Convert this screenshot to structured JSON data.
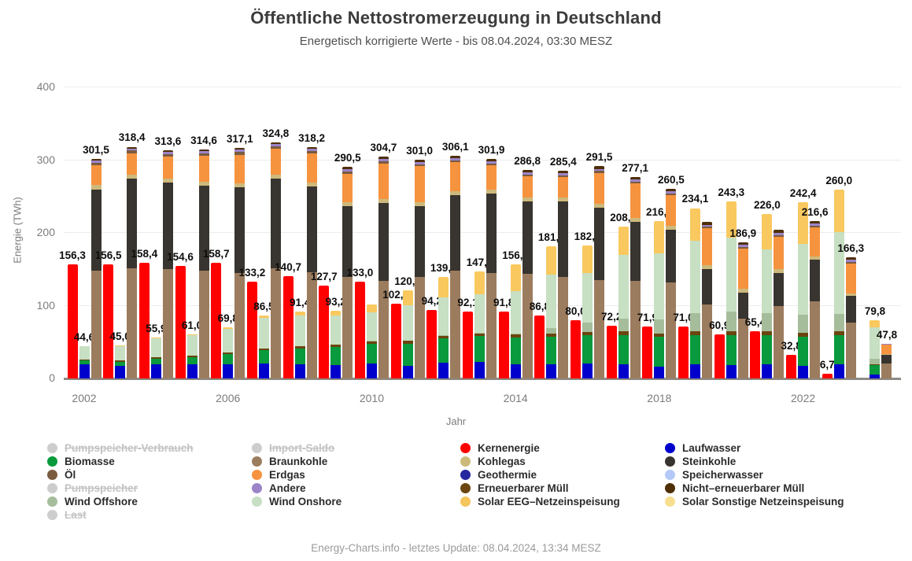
{
  "title": "Öffentliche Nettostromerzeugung in Deutschland",
  "subtitle": "Energetisch korrigierte Werte - bis 08.04.2024, 03:30 MESZ",
  "footer": "Energy-Charts.info - letztes Update: 08.04.2024, 13:34 MESZ",
  "y_axis": {
    "title": "Energie (TWh)",
    "ticks": [
      0,
      100,
      200,
      300,
      400
    ],
    "max": 400
  },
  "x_axis": {
    "title": "Jahr",
    "tick_years": [
      2002,
      2006,
      2010,
      2014,
      2018,
      2022
    ]
  },
  "colors": {
    "kernenergie": "#fe0000",
    "laufwasser": "#0000cc",
    "biomasse": "#089a3c",
    "ern_muell": "#6b450f",
    "wind_offshore": "#a6bd9b",
    "wind_onshore": "#c7dfc2",
    "solar": "#f9c95f",
    "braunkohle": "#9c7c5e",
    "steinkohle": "#38342f",
    "kohlegas": "#cdb97b",
    "erdgas": "#f6933f",
    "oel": "#7a5c3f",
    "andere": "#9c84c8",
    "nicht_ern_muell": "#4f2f05",
    "geothermie": "#26269e",
    "speicherwasser": "#b5c9f8",
    "solar_eeg": "#f3c55c",
    "solar_sonstige": "#f8de8f",
    "disabled_legend": "#cdcdcd",
    "gridline": "#ececec",
    "axis_line": "#8d8b85"
  },
  "chart_data": {
    "type": "bar",
    "stacked": true,
    "unit": "TWh",
    "ylim": [
      0,
      400
    ],
    "grid": true,
    "legend_position": "bottom",
    "years": [
      2002,
      2003,
      2004,
      2005,
      2006,
      2007,
      2008,
      2009,
      2010,
      2011,
      2012,
      2013,
      2014,
      2015,
      2016,
      2017,
      2018,
      2019,
      2020,
      2021,
      2022,
      2023,
      2024
    ],
    "kernenergie": {
      "values": [
        156.3,
        156.5,
        158.4,
        154.6,
        158.7,
        133.2,
        140.7,
        127.7,
        133.0,
        102.2,
        94.2,
        92.1,
        91.8,
        86.8,
        80.0,
        72.2,
        71.9,
        71.0,
        60.9,
        65.4,
        32.8,
        6.7,
        0
      ],
      "labels": [
        "156,3",
        "156,5",
        "158,4",
        "154,6",
        "158,7",
        "133,2",
        "140,7",
        "127,7",
        "133,0",
        "102,2",
        "94,2",
        "92,1",
        "91,8",
        "86,8",
        "80,0",
        "72,2",
        "71,9",
        "71,0",
        "60,9",
        "65,4",
        "32,8",
        "6,7",
        null
      ]
    },
    "renewables_stack": {
      "totals": [
        44.6,
        45.0,
        55.9,
        61.0,
        69.8,
        86.5,
        91.4,
        93.2,
        102.0,
        120.8,
        139.2,
        147.2,
        156.5,
        181.9,
        182.7,
        208.8,
        216.0,
        234.1,
        243.3,
        226.0,
        242.4,
        260.0,
        79.8
      ],
      "labels": [
        "44,6",
        "45,0",
        "55,9",
        "61,0",
        "69,8",
        "86,5",
        "91,4",
        "93,2",
        null,
        "120,8",
        "139,2",
        "147,2",
        "156,5",
        "181,9",
        "182,7",
        "208,8",
        "216,0",
        "234,1",
        "243,3",
        "226,0",
        "242,4",
        "260,0",
        "79,8"
      ],
      "segment_order": [
        "laufwasser",
        "biomasse",
        "ern_muell",
        "wind_offshore",
        "wind_onshore",
        "solar"
      ],
      "segments": {
        "laufwasser": [
          20.0,
          17.0,
          19.5,
          19.0,
          19.5,
          20.5,
          20.0,
          18.5,
          20.5,
          17.5,
          21.5,
          22.5,
          19.5,
          19.0,
          20.5,
          20.0,
          16.5,
          19.5,
          18.5,
          19.0,
          17.0,
          19.5,
          5.5
        ],
        "biomasse": [
          4.5,
          6.0,
          7.5,
          10.5,
          13.5,
          18.0,
          21.5,
          24.5,
          27.5,
          30.5,
          33.5,
          35.5,
          37.0,
          38.0,
          39.0,
          40.0,
          40.5,
          40.5,
          41.0,
          40.5,
          40.0,
          40.0,
          13.0
        ],
        "ern_muell": [
          1.6,
          1.8,
          2.0,
          2.3,
          2.5,
          2.7,
          2.9,
          3.0,
          3.2,
          3.4,
          3.6,
          3.8,
          4.0,
          4.2,
          4.4,
          4.6,
          4.8,
          5.0,
          5.2,
          5.4,
          5.6,
          5.8,
          1.5
        ],
        "wind_offshore": [
          0,
          0,
          0,
          0,
          0,
          0,
          0,
          0,
          0.2,
          0.6,
          0.7,
          0.9,
          1.4,
          8.3,
          12.4,
          17.7,
          19.3,
          24.7,
          27.3,
          24.4,
          24.8,
          23.5,
          7.5
        ],
        "wind_onshore": [
          18.4,
          20.0,
          26.3,
          28.0,
          32.1,
          42.0,
          42.5,
          40.6,
          39.0,
          49.0,
          52.0,
          53.5,
          58.5,
          73.5,
          68.6,
          87.5,
          90.5,
          99.0,
          102.0,
          87.6,
          97.0,
          112.0,
          43.0
        ],
        "solar": [
          0.1,
          0.2,
          0.6,
          1.2,
          2.2,
          3.3,
          4.5,
          6.6,
          11.6,
          19.8,
          27.9,
          31.0,
          36.1,
          38.9,
          37.8,
          39.0,
          44.4,
          45.4,
          49.3,
          49.1,
          58.0,
          59.2,
          9.3
        ]
      }
    },
    "conventional_stack": {
      "totals": [
        301.5,
        318.4,
        313.6,
        314.6,
        317.1,
        324.8,
        318.2,
        290.5,
        304.7,
        301.0,
        306.1,
        301.9,
        286.8,
        285.4,
        291.5,
        277.1,
        260.5,
        214.9,
        186.9,
        204.0,
        216.6,
        166.3,
        47.8
      ],
      "labels": [
        "301,5",
        "318,4",
        "313,6",
        "314,6",
        "317,1",
        "324,8",
        "318,2",
        "290,5",
        "304,7",
        "301,0",
        "306,1",
        "301,9",
        "286,8",
        "285,4",
        "291,5",
        "277,1",
        "260,5",
        null,
        "186,9",
        null,
        "216,6",
        "166,3",
        "47,8"
      ],
      "segment_order": [
        "braunkohle",
        "steinkohle",
        "kohlegas",
        "erdgas",
        "oel",
        "andere",
        "nicht_ern_muell"
      ],
      "segments": {
        "braunkohle": [
          148,
          151,
          150,
          148,
          145,
          151,
          146,
          140,
          134,
          139,
          148,
          145,
          144,
          139,
          135,
          134,
          131.5,
          102,
          82,
          99,
          106,
          77,
          21
        ],
        "steinkohle": [
          112,
          124,
          119,
          117,
          118,
          124,
          118,
          97,
          107,
          98,
          104,
          109,
          99,
          104,
          100,
          81,
          72.5,
          48,
          36,
          46,
          57,
          36,
          11
        ],
        "kohlegas": [
          5.5,
          5.5,
          5.5,
          5.5,
          5.5,
          5.5,
          5.5,
          5.0,
          5.5,
          5.5,
          5.5,
          5.5,
          5.5,
          5.5,
          5.5,
          5.5,
          5.5,
          5.5,
          5.0,
          5.0,
          4.5,
          4.0,
          1.0
        ],
        "erdgas": [
          27,
          29,
          30.5,
          35,
          39,
          35,
          39.5,
          39.5,
          49,
          49.5,
          39.5,
          33.5,
          29.5,
          28,
          42,
          47.5,
          42.5,
          51,
          55,
          45,
          40,
          41,
          13
        ],
        "oel": [
          4.0,
          4.0,
          3.5,
          3.5,
          3.5,
          3.0,
          3.0,
          2.8,
          2.7,
          2.5,
          2.5,
          2.5,
          2.4,
          2.5,
          2.5,
          2.4,
          2.4,
          2.3,
          2.2,
          2.3,
          2.4,
          2.0,
          0.5
        ],
        "andere": [
          2.5,
          2.4,
          2.6,
          3.0,
          3.3,
          3.4,
          3.2,
          3.2,
          3.3,
          3.2,
          3.2,
          3.0,
          3.0,
          3.0,
          3.0,
          3.1,
          2.6,
          2.6,
          3.1,
          3.1,
          3.1,
          2.8,
          0.6
        ],
        "nicht_ern_muell": [
          2.5,
          2.5,
          2.5,
          2.6,
          2.8,
          2.9,
          3.0,
          3.0,
          3.2,
          3.3,
          3.4,
          3.4,
          3.4,
          3.4,
          3.5,
          3.6,
          3.5,
          3.5,
          3.6,
          3.6,
          3.6,
          3.5,
          0.7
        ]
      }
    }
  },
  "legend": {
    "columns": [
      [
        {
          "label": "Pumpspeicher-Verbrauch",
          "color_key": "disabled_legend",
          "disabled": true
        },
        {
          "label": "Biomasse",
          "color_key": "biomasse",
          "disabled": false
        },
        {
          "label": "Öl",
          "color_key": "oel",
          "disabled": false
        },
        {
          "label": "Pumpspeicher",
          "color_key": "disabled_legend",
          "disabled": true
        },
        {
          "label": "Wind Offshore",
          "color_key": "wind_offshore",
          "disabled": false
        },
        {
          "label": "Last",
          "color_key": "disabled_legend",
          "disabled": true
        }
      ],
      [
        {
          "label": "Import-Saldo",
          "color_key": "disabled_legend",
          "disabled": true
        },
        {
          "label": "Braunkohle",
          "color_key": "braunkohle",
          "disabled": false
        },
        {
          "label": "Erdgas",
          "color_key": "erdgas",
          "disabled": false
        },
        {
          "label": "Andere",
          "color_key": "andere",
          "disabled": false
        },
        {
          "label": "Wind Onshore",
          "color_key": "wind_onshore",
          "disabled": false
        }
      ],
      [
        {
          "label": "Kernenergie",
          "color_key": "kernenergie",
          "disabled": false
        },
        {
          "label": "Kohlegas",
          "color_key": "kohlegas",
          "disabled": false
        },
        {
          "label": "Geothermie",
          "color_key": "geothermie",
          "disabled": false
        },
        {
          "label": "Erneuerbarer Müll",
          "color_key": "ern_muell",
          "disabled": false
        },
        {
          "label": "Solar EEG–Netzeinspeisung",
          "color_key": "solar_eeg",
          "disabled": false
        }
      ],
      [
        {
          "label": "Laufwasser",
          "color_key": "laufwasser",
          "disabled": false
        },
        {
          "label": "Steinkohle",
          "color_key": "steinkohle",
          "disabled": false
        },
        {
          "label": "Speicherwasser",
          "color_key": "speicherwasser",
          "disabled": false
        },
        {
          "label": "Nicht–erneuerbarer Müll",
          "color_key": "nicht_ern_muell",
          "disabled": false
        },
        {
          "label": "Solar Sonstige Netzeinspeisung",
          "color_key": "solar_sonstige",
          "disabled": false
        }
      ]
    ]
  }
}
